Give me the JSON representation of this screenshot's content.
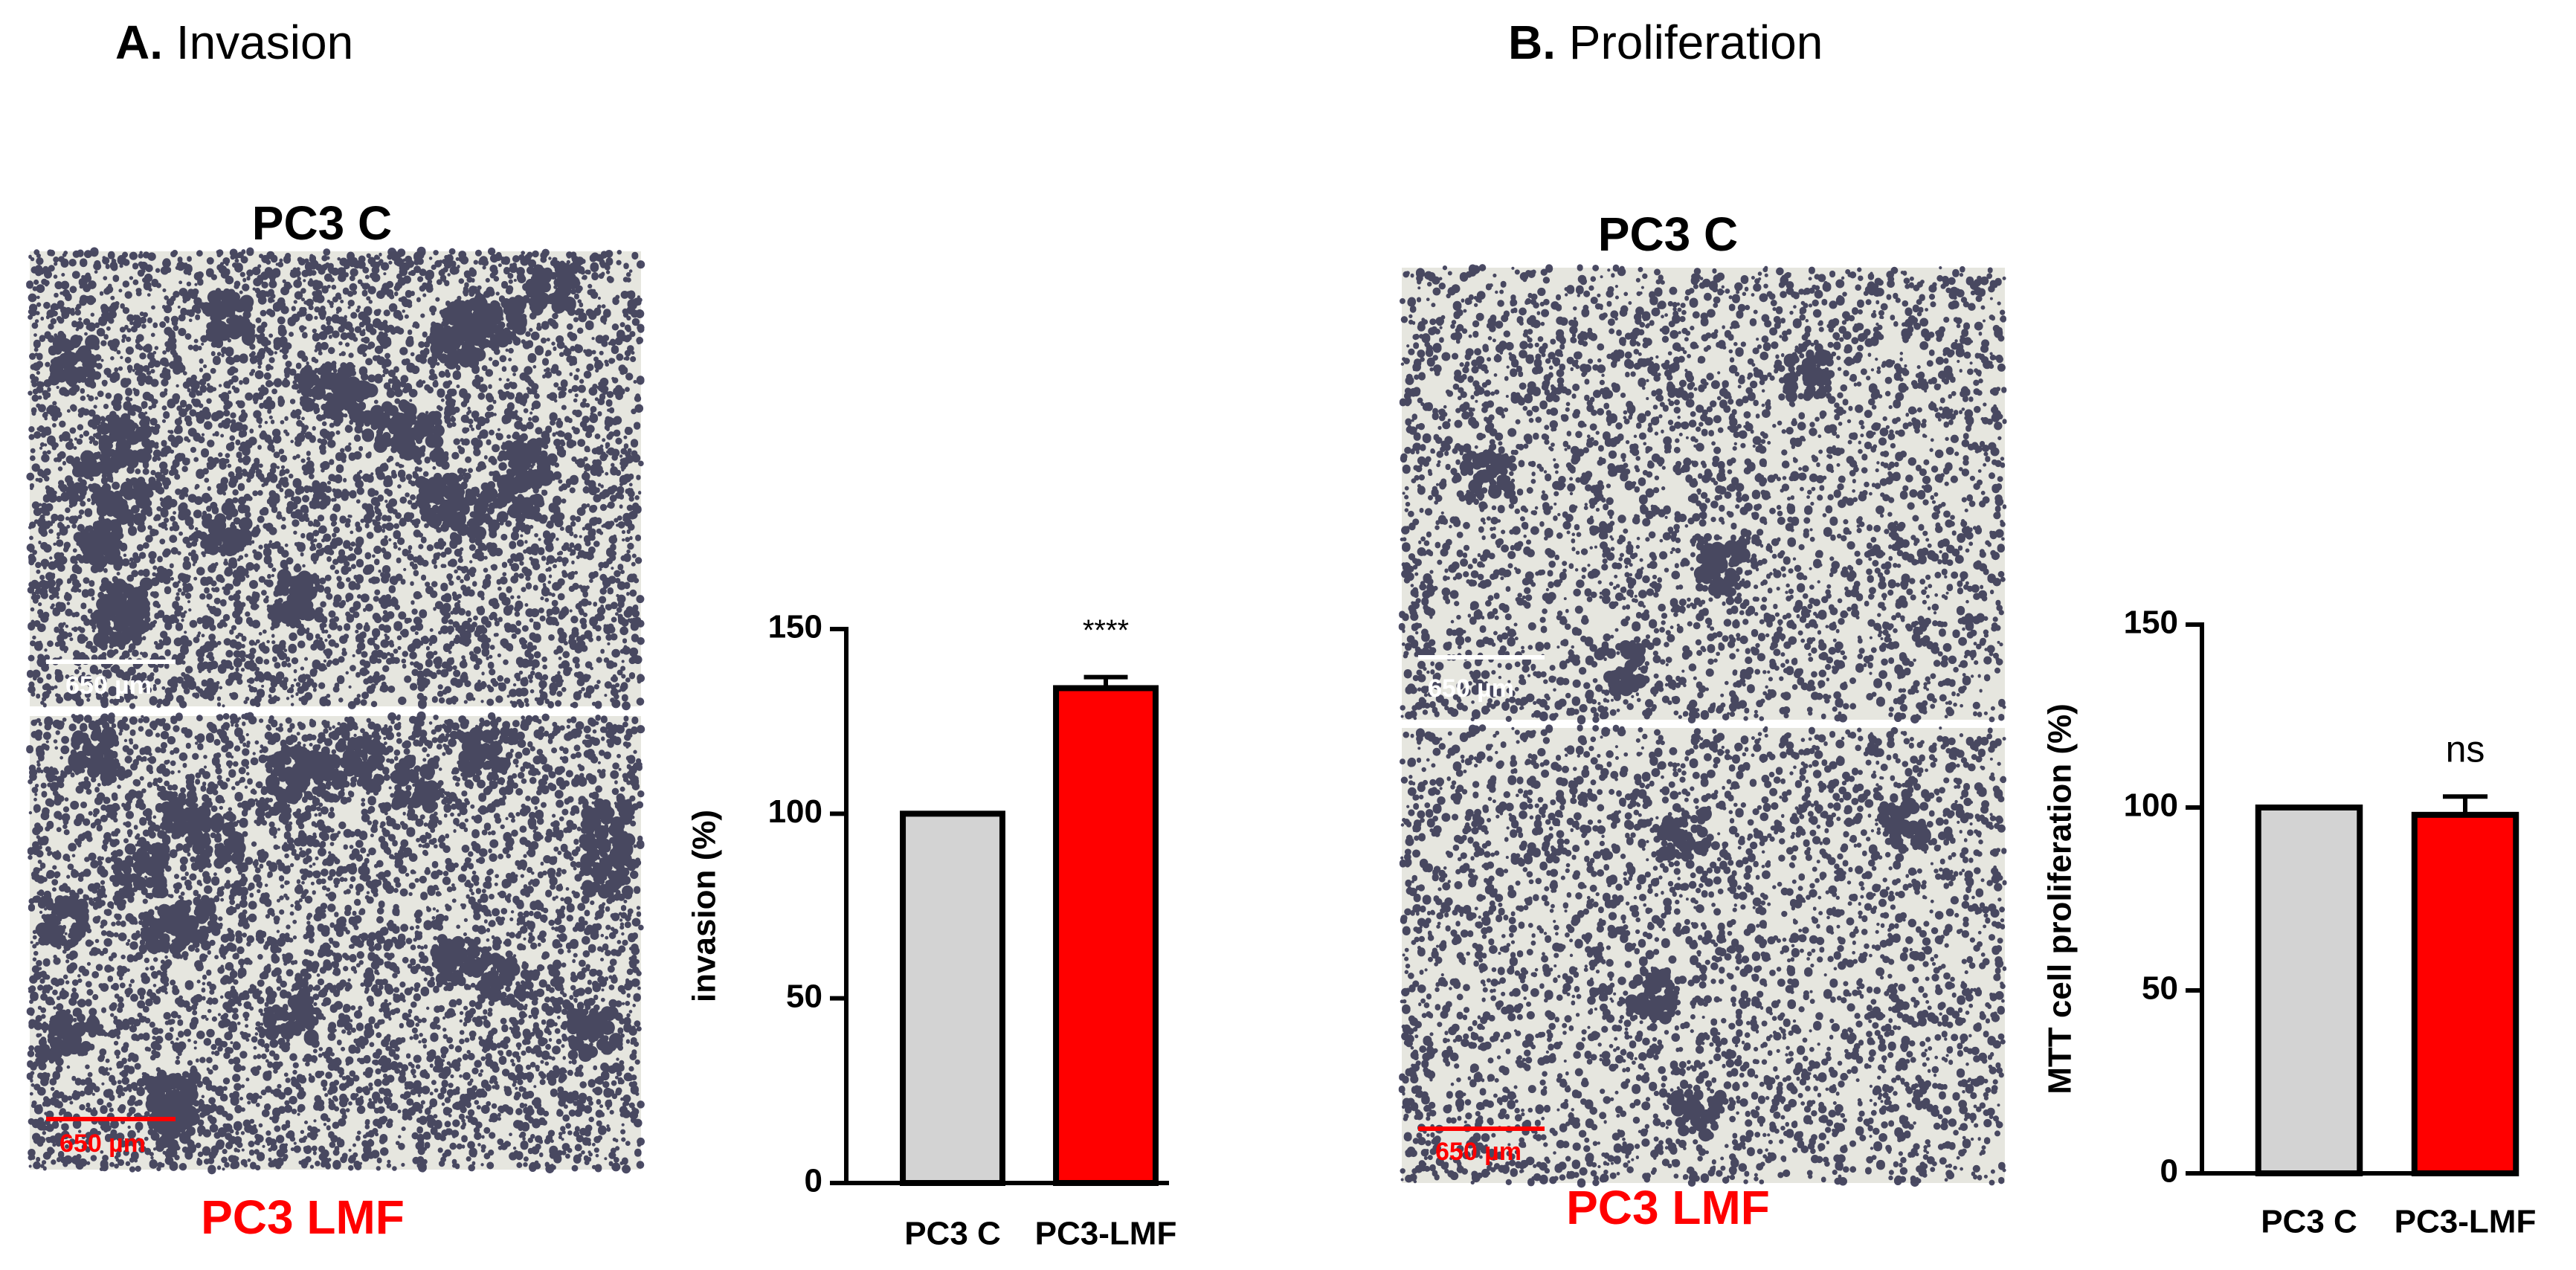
{
  "panels": [
    {
      "letter": "A.",
      "title": "Invasion",
      "top_label": "PC3 C",
      "bottom_label": "PC3 LMF",
      "scale_top": "650 µm",
      "scale_bottom": "650 µm"
    },
    {
      "letter": "B.",
      "title": "Proliferation",
      "top_label": "PC3 C",
      "bottom_label": "PC3 LMF",
      "scale_top": "650 µm",
      "scale_bottom": "650 µm"
    }
  ],
  "chart_data": [
    {
      "type": "bar",
      "ylabel": "invasion (%)",
      "categories": [
        "PC3 C",
        "PC3-LMF"
      ],
      "values": [
        100,
        134
      ],
      "errors": [
        0,
        3
      ],
      "colors": [
        "#d3d3d3",
        "#ff0000"
      ],
      "ylim": [
        0,
        150
      ],
      "yticks": [
        0,
        50,
        100,
        150
      ],
      "annotation": "****"
    },
    {
      "type": "bar",
      "ylabel": "MTT cell proliferation (%)",
      "categories": [
        "PC3 C",
        "PC3-LMF"
      ],
      "values": [
        100,
        98
      ],
      "errors": [
        0,
        5
      ],
      "colors": [
        "#d3d3d3",
        "#ff0000"
      ],
      "ylim": [
        0,
        150
      ],
      "yticks": [
        0,
        50,
        100,
        150
      ],
      "annotation": "ns"
    }
  ]
}
